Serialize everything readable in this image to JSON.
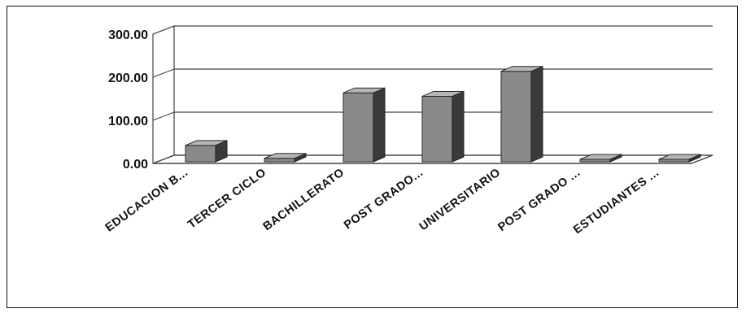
{
  "chart_data": {
    "type": "bar",
    "style": "3d-column",
    "categories": [
      "EDUCACION B...",
      "TERCER CICLO",
      "BACHILLERATO",
      "POST GRADO...",
      "UNIVERSITARIO",
      "POST GRADO ...",
      "ESTUDIANTES ..."
    ],
    "values": [
      38,
      8,
      160,
      152,
      210,
      0,
      2
    ],
    "yticks": [
      "0.00",
      "100.00",
      "200.00",
      "300.00"
    ],
    "ylim": [
      0,
      300
    ],
    "grid": true,
    "legend": "none",
    "colors": {
      "bar_front": "#8a8a8a",
      "bar_side": "#3a3a3a",
      "bar_top": "#b5b5b5",
      "gridline": "#444444",
      "frame": "#111111"
    }
  }
}
